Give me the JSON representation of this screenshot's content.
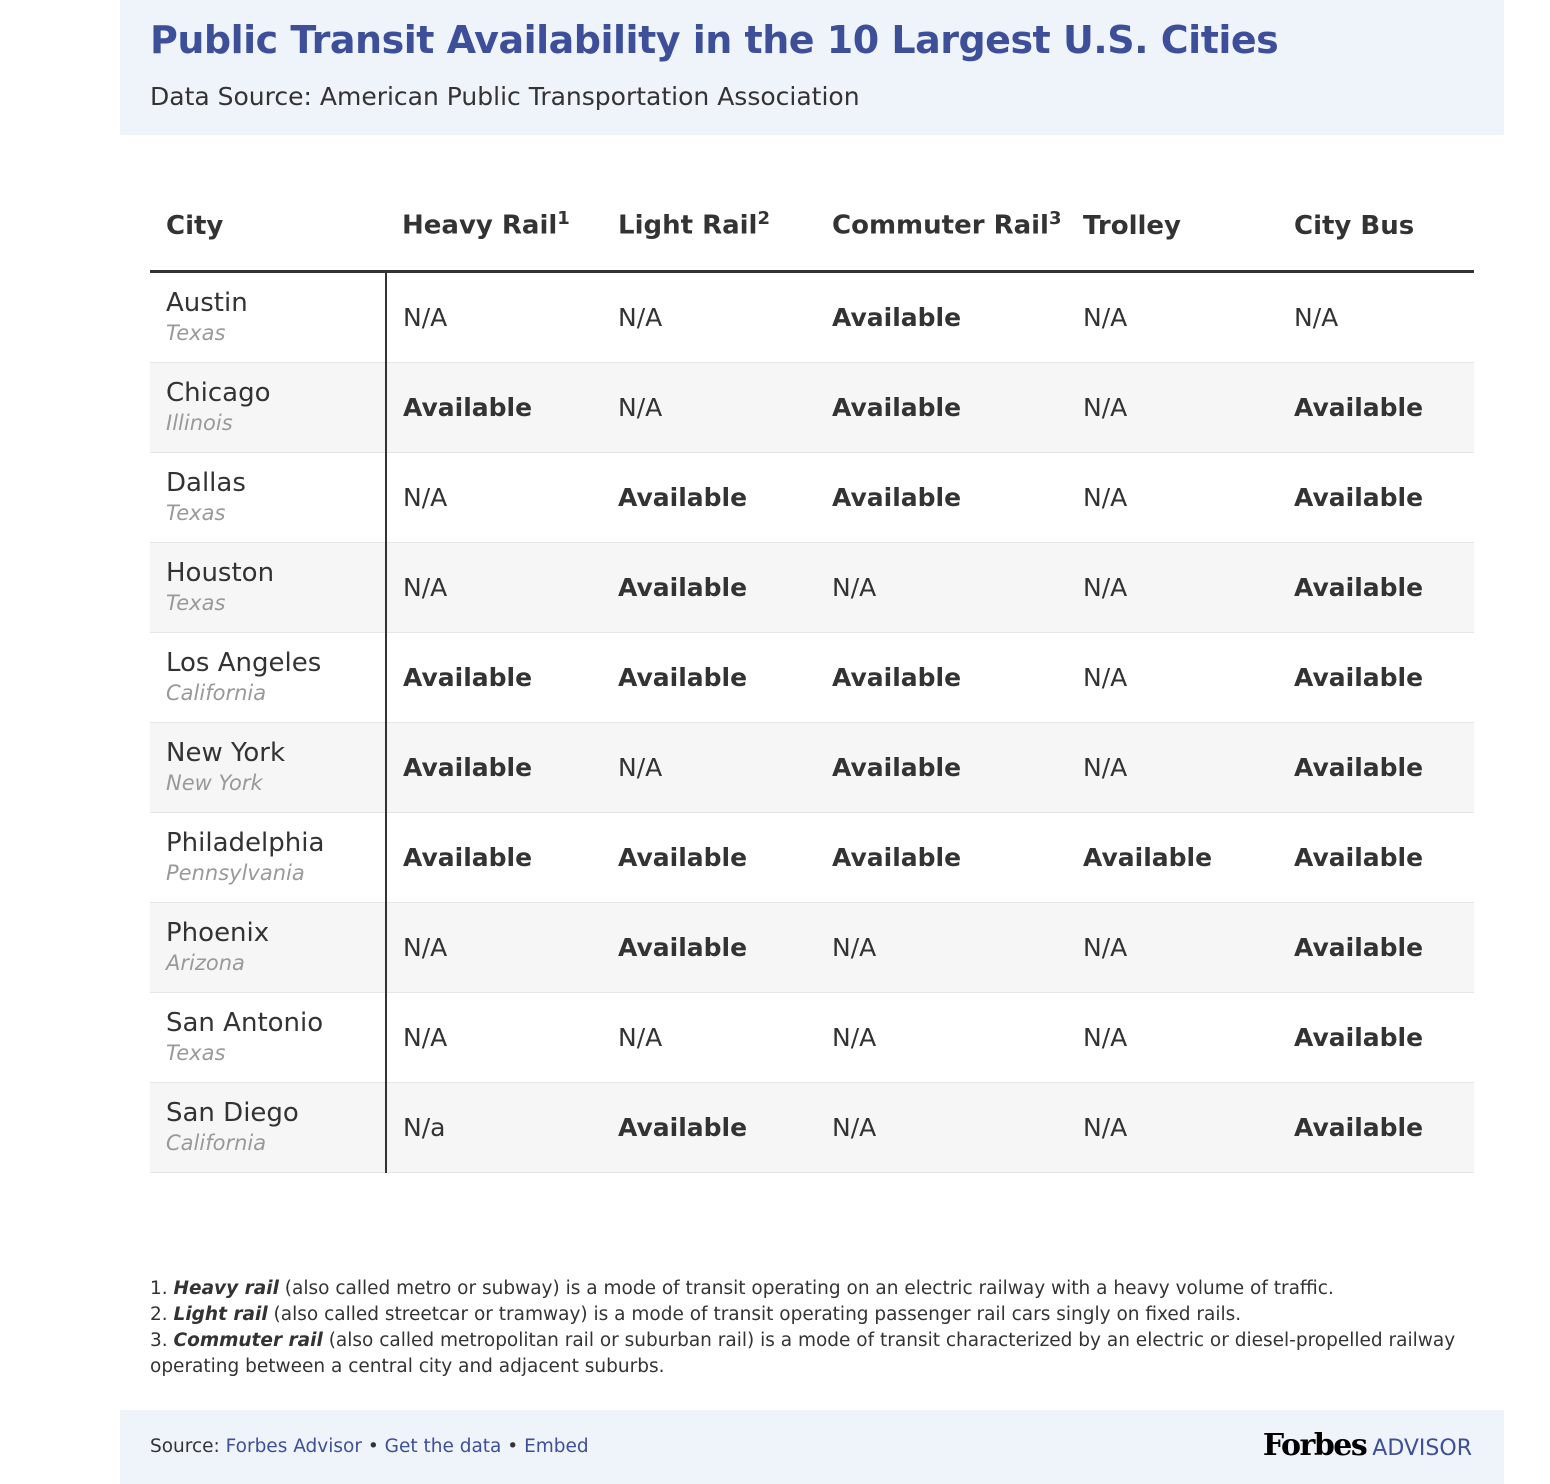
{
  "header": {
    "title": "Public Transit Availability in the 10 Largest U.S. Cities",
    "subtitle": "Data Source: American Public Transportation Association"
  },
  "chart_data": {
    "type": "table",
    "columns": [
      {
        "label": "City",
        "sup": ""
      },
      {
        "label": "Heavy Rail",
        "sup": "1"
      },
      {
        "label": "Light Rail",
        "sup": "2"
      },
      {
        "label": "Commuter Rail",
        "sup": "3"
      },
      {
        "label": "Trolley",
        "sup": ""
      },
      {
        "label": "City Bus",
        "sup": ""
      }
    ],
    "rows": [
      {
        "city": "Austin",
        "state": "Texas",
        "values": [
          "N/A",
          "N/A",
          "Available",
          "N/A",
          "N/A"
        ]
      },
      {
        "city": "Chicago",
        "state": "Illinois",
        "values": [
          "Available",
          "N/A",
          "Available",
          "N/A",
          "Available"
        ]
      },
      {
        "city": "Dallas",
        "state": "Texas",
        "values": [
          "N/A",
          "Available",
          "Available",
          "N/A",
          "Available"
        ]
      },
      {
        "city": "Houston",
        "state": "Texas",
        "values": [
          "N/A",
          "Available",
          "N/A",
          "N/A",
          "Available"
        ]
      },
      {
        "city": "Los Angeles",
        "state": "California",
        "values": [
          "Available",
          "Available",
          "Available",
          "N/A",
          "Available"
        ]
      },
      {
        "city": "New York",
        "state": "New York",
        "values": [
          "Available",
          "N/A",
          "Available",
          "N/A",
          "Available"
        ]
      },
      {
        "city": "Philadelphia",
        "state": "Pennsylvania",
        "values": [
          "Available",
          "Available",
          "Available",
          "Available",
          "Available"
        ]
      },
      {
        "city": "Phoenix",
        "state": "Arizona",
        "values": [
          "N/A",
          "Available",
          "N/A",
          "N/A",
          "Available"
        ]
      },
      {
        "city": "San Antonio",
        "state": "Texas",
        "values": [
          "N/A",
          "N/A",
          "N/A",
          "N/A",
          "Available"
        ]
      },
      {
        "city": "San Diego",
        "state": "California",
        "values": [
          "N/a",
          "Available",
          "N/A",
          "N/A",
          "Available"
        ]
      }
    ]
  },
  "footnotes": [
    {
      "num": "1.",
      "term": "Heavy rail",
      "text": " (also called metro or subway) is a mode of transit operating on an electric railway with a heavy volume of traffic."
    },
    {
      "num": "2.",
      "term": "Light rail",
      "text": " (also called streetcar or tramway) is a mode of transit operating passenger rail cars singly on fixed rails."
    },
    {
      "num": "3.",
      "term": "Commuter rail",
      "text": " (also called metropolitan rail or suburban rail) is a mode of transit characterized by an electric or diesel-propelled railway operating between a central city and adjacent suburbs."
    }
  ],
  "footer": {
    "source_label": "Source: ",
    "source_link": "Forbes Advisor",
    "sep": " • ",
    "get_data": "Get the data",
    "embed": "Embed",
    "logo_main": "Forbes",
    "logo_sub": "ADVISOR"
  },
  "colors": {
    "accent": "#3e4f9a",
    "header_bg": "#eff3fa",
    "alt_row": "#f6f6f6"
  }
}
